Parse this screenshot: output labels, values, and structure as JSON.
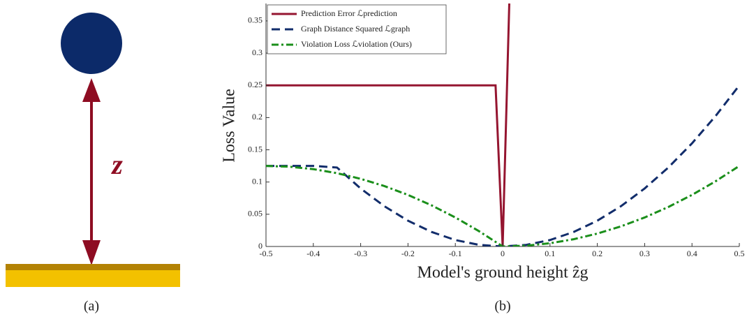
{
  "diagram": {
    "symbol": "z",
    "caption": "(a)"
  },
  "chart_data": {
    "type": "line",
    "caption": "(b)",
    "xlabel": "Model's ground height ẑg",
    "ylabel": "Loss Value",
    "xlim": [
      -0.5,
      0.5
    ],
    "ylim": [
      0,
      0.377
    ],
    "xticks": [
      -0.5,
      -0.4,
      -0.3,
      -0.2,
      -0.1,
      0,
      0.1,
      0.2,
      0.3,
      0.4,
      0.5
    ],
    "yticks": [
      0,
      0.05,
      0.1,
      0.15,
      0.2,
      0.25,
      0.3,
      0.35
    ],
    "legend": "upper-left",
    "series": [
      {
        "name": "Prediction Error ℒprediction",
        "color": "#951530",
        "style": "solid",
        "x": [
          -0.5,
          -0.015,
          0,
          0.014
        ],
        "values": [
          0.25,
          0.25,
          0,
          0.377
        ]
      },
      {
        "name": "Graph Distance Squared ℒgraph",
        "color": "#122d6b",
        "style": "dashed",
        "x": [
          -0.5,
          -0.45,
          -0.4,
          -0.35,
          -0.3,
          -0.25,
          -0.2,
          -0.15,
          -0.1,
          -0.05,
          0,
          0.05,
          0.1,
          0.15,
          0.2,
          0.25,
          0.3,
          0.35,
          0.4,
          0.45,
          0.5
        ],
        "values": [
          0.125,
          0.125,
          0.125,
          0.1225,
          0.09,
          0.0625,
          0.04,
          0.0225,
          0.01,
          0.0025,
          0,
          0.0025,
          0.01,
          0.0225,
          0.04,
          0.0625,
          0.09,
          0.1225,
          0.16,
          0.2025,
          0.25
        ]
      },
      {
        "name": "Violation Loss ℒviolation (Ours)",
        "color": "#1b8f1b",
        "style": "dashdot",
        "x": [
          -0.5,
          -0.45,
          -0.4,
          -0.35,
          -0.3,
          -0.25,
          -0.2,
          -0.15,
          -0.1,
          -0.05,
          0,
          0.05,
          0.1,
          0.15,
          0.2,
          0.25,
          0.3,
          0.35,
          0.4,
          0.45,
          0.5
        ],
        "values": [
          0.125,
          0.12375,
          0.12,
          0.11375,
          0.105,
          0.09375,
          0.08,
          0.06375,
          0.045,
          0.02375,
          0,
          0.00125,
          0.005,
          0.01125,
          0.02,
          0.03125,
          0.045,
          0.06125,
          0.08,
          0.10125,
          0.125
        ]
      }
    ]
  }
}
